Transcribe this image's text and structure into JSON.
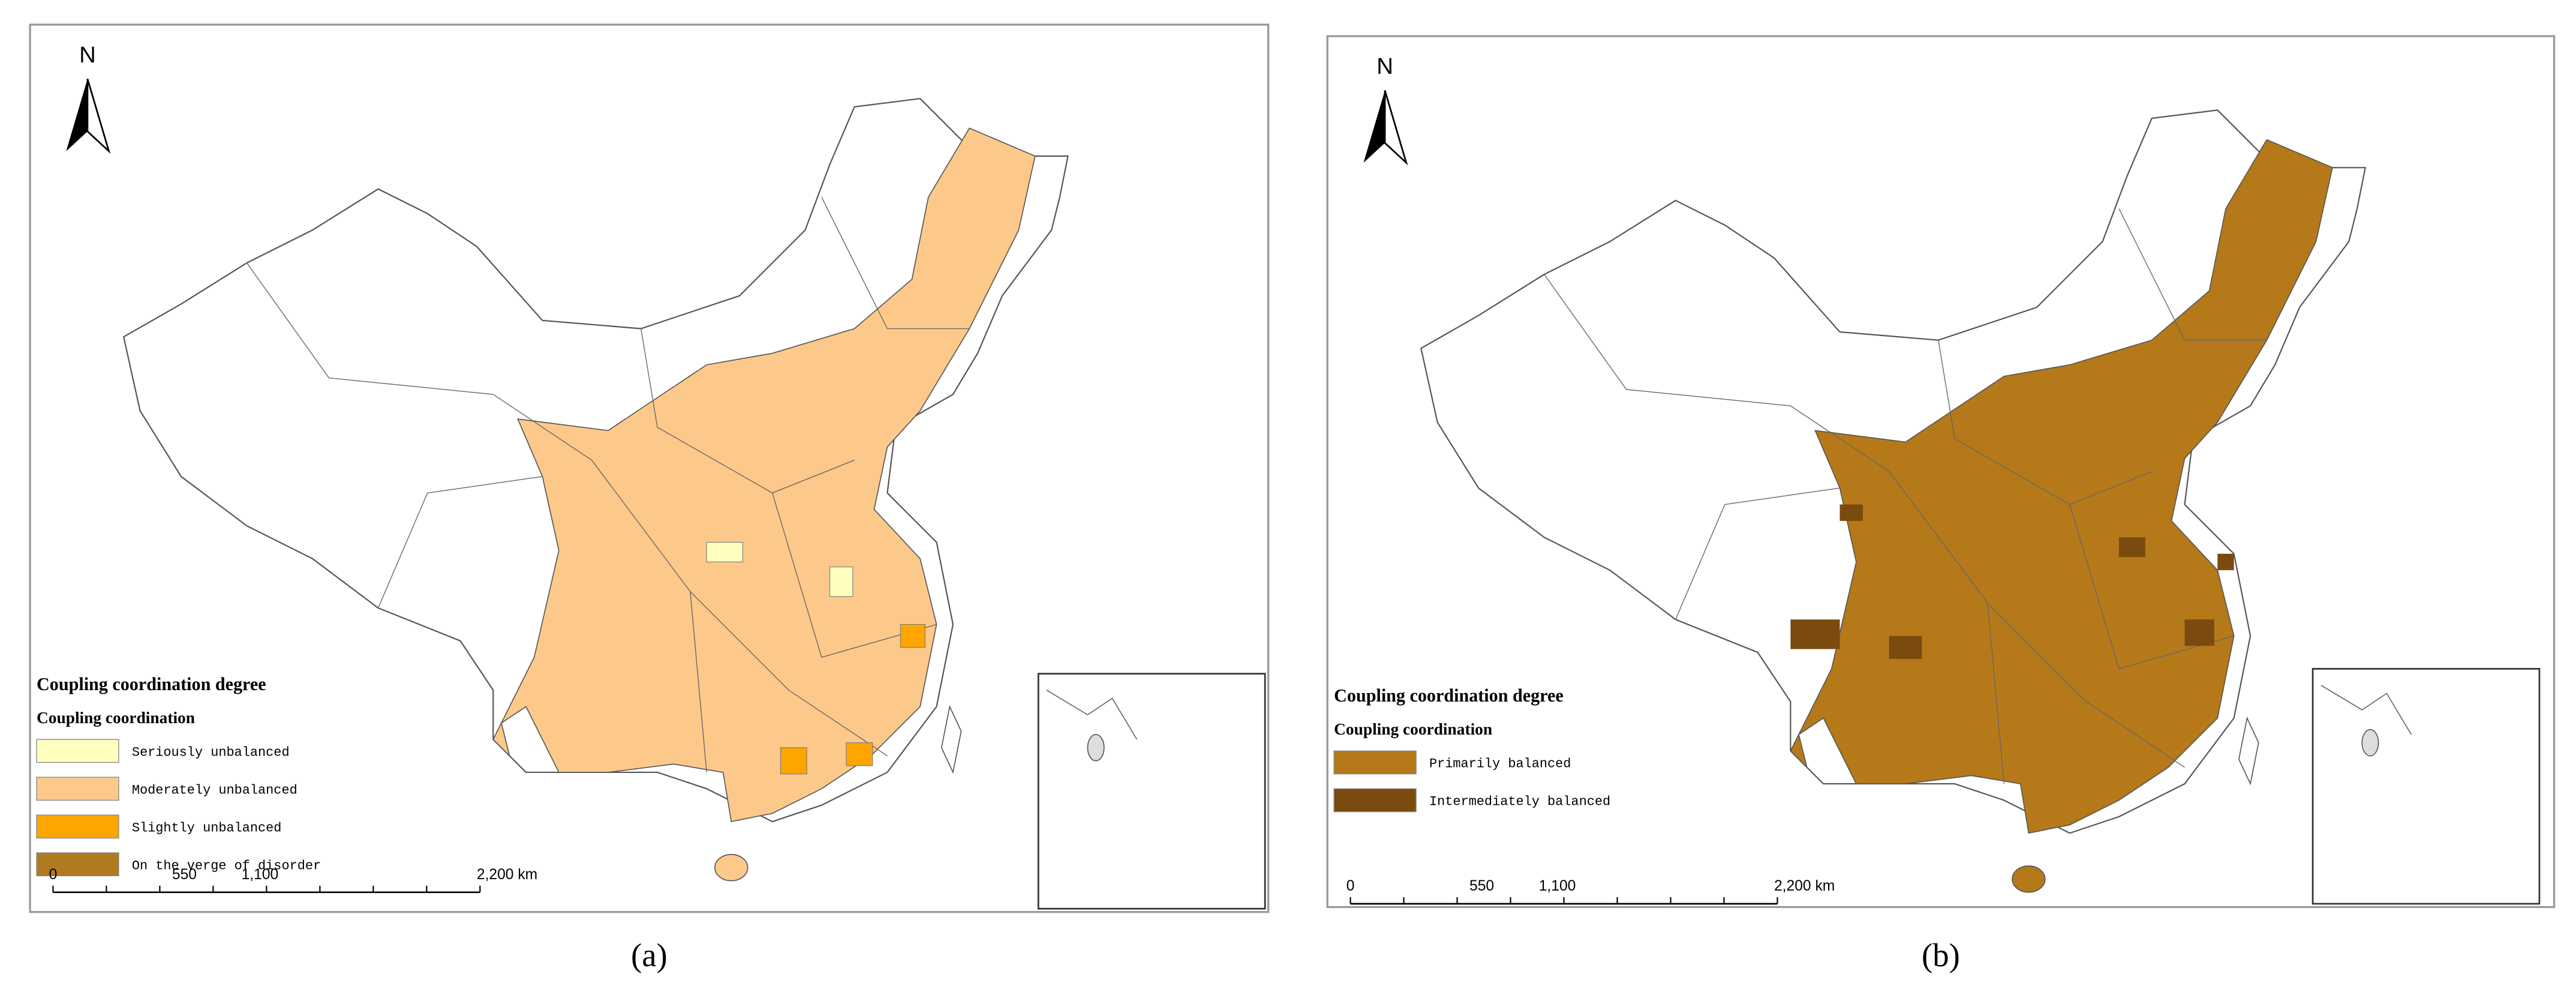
{
  "panels": [
    {
      "caption": "(a)",
      "north": "N",
      "legend": {
        "title": "Coupling coordination degree",
        "subtitle": "Coupling coordination",
        "items": [
          {
            "label": "Seriously unbalanced",
            "color": "#ffffc0"
          },
          {
            "label": "Moderately unbalanced",
            "color": "#fdc98a"
          },
          {
            "label": "Slightly unbalanced",
            "color": "#ffa500"
          },
          {
            "label": "On the verge of disorder",
            "color": "#b07a1f"
          }
        ]
      },
      "scale_bar": [
        "0",
        "550",
        "1,100",
        "2,200 km"
      ]
    },
    {
      "caption": "(b)",
      "north": "N",
      "legend": {
        "title": "Coupling coordination degree",
        "subtitle": "Coupling coordination",
        "items": [
          {
            "label": "Primarily balanced",
            "color": "#b5791a"
          },
          {
            "label": "Intermediately balanced",
            "color": "#7a4a0f"
          }
        ]
      },
      "scale_bar": [
        "0",
        "550",
        "1,100",
        "2,200 km"
      ]
    }
  ]
}
